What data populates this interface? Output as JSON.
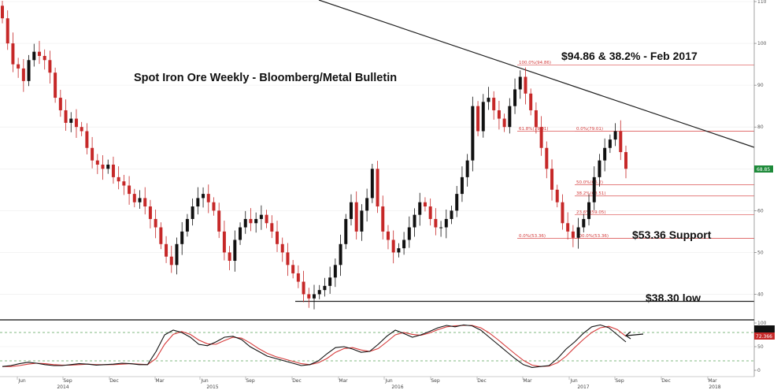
{
  "chart_data": {
    "type": "candlestick",
    "title": "Spot Iron Ore Weekly - Bloomberg/Metal Bulletin",
    "annotations": {
      "top_right": "$94.86 & 38.2% - Feb 2017",
      "support": "$53.36 Support",
      "low": "$38.30 low"
    },
    "price_axis": {
      "ticks": [
        "110",
        "100",
        "90",
        "80",
        "70",
        "60",
        "50",
        "40"
      ],
      "ylim": [
        35,
        110
      ],
      "current_price": "68.85"
    },
    "oscillator_axis": {
      "ticks": [
        "100",
        "50",
        "0"
      ],
      "ylim": [
        0,
        100
      ],
      "current_value": "72.366",
      "levels": [
        80,
        20
      ]
    },
    "x_axis": {
      "month_labels": [
        "Jun",
        "Sep",
        "Dec",
        "Mar",
        "Jun",
        "Sep",
        "Dec",
        "Mar",
        "Jun",
        "Sep",
        "Dec",
        "Mar",
        "Jun",
        "Sep",
        "Dec",
        "Mar"
      ],
      "year_labels": [
        "2014",
        "2015",
        "2016",
        "2017",
        "2018"
      ]
    },
    "fib_levels": [
      {
        "label": "100.0%(94.86)",
        "value": 94.86
      },
      {
        "label": "61.8%(79.01)",
        "value": 79.01
      },
      {
        "label": "0.0%(79.01)",
        "value": 79.01
      },
      {
        "label": "50.0%(66.2)",
        "value": 66.2
      },
      {
        "label": "38.2%(63.51)",
        "value": 63.51
      },
      {
        "label": "23.6%(59.05)",
        "value": 59.05
      },
      {
        "label": "0.0%(53.36)",
        "value": 53.36
      },
      {
        "label": "100.0%(53.36)",
        "value": 53.36
      }
    ],
    "support_line": 38.3,
    "trendline": {
      "start": [
        0,
        118
      ],
      "end": [
        1,
        75
      ]
    },
    "closes": [
      106,
      100,
      95,
      94,
      91,
      96,
      98,
      97,
      96,
      93,
      87,
      84,
      81,
      82,
      80,
      79,
      75,
      72,
      71,
      70,
      71,
      68,
      67,
      66,
      64,
      62,
      63,
      61,
      58,
      56,
      52,
      49,
      47,
      52,
      55,
      58,
      61,
      63,
      64,
      62,
      60,
      55,
      50,
      48,
      53,
      56,
      58,
      57,
      58,
      59,
      57,
      55,
      52,
      50,
      47,
      45,
      43,
      40,
      39,
      40,
      41,
      42,
      44,
      47,
      52,
      58,
      62,
      55,
      60,
      63,
      70,
      61,
      55,
      53,
      50,
      51,
      53,
      56,
      59,
      62,
      61,
      58,
      56,
      56,
      58,
      60,
      64,
      68,
      72,
      85,
      79,
      86,
      87,
      84,
      82,
      80,
      85,
      89,
      92,
      88,
      84,
      80,
      75,
      70,
      65,
      62,
      57,
      55,
      53.5,
      56,
      58,
      62,
      68,
      72,
      75,
      77,
      79,
      74,
      70
    ],
    "stoch_k": [
      8,
      10,
      14,
      17,
      15,
      12,
      10,
      10,
      12,
      14,
      13,
      11,
      12,
      13,
      15,
      14,
      12,
      12,
      40,
      75,
      85,
      80,
      70,
      55,
      52,
      60,
      70,
      72,
      65,
      50,
      40,
      30,
      25,
      20,
      15,
      10,
      12,
      20,
      35,
      48,
      50,
      45,
      38,
      40,
      55,
      72,
      85,
      78,
      70,
      75,
      82,
      90,
      95,
      92,
      96,
      94,
      85,
      70,
      55,
      40,
      25,
      12,
      6,
      8,
      10,
      25,
      45,
      60,
      78,
      92,
      96,
      90,
      75,
      60
    ],
    "stoch_d": [
      8,
      8,
      10,
      13,
      15,
      14,
      12,
      11,
      11,
      12,
      13,
      12,
      12,
      12,
      13,
      14,
      13,
      12,
      25,
      55,
      76,
      82,
      76,
      64,
      56,
      55,
      63,
      70,
      68,
      58,
      46,
      36,
      29,
      24,
      19,
      14,
      12,
      16,
      25,
      38,
      46,
      48,
      43,
      40,
      46,
      60,
      75,
      80,
      76,
      74,
      79,
      86,
      92,
      94,
      95,
      95,
      90,
      79,
      65,
      50,
      35,
      21,
      11,
      8,
      9,
      16,
      30,
      48,
      65,
      80,
      90,
      93,
      86,
      72
    ]
  }
}
